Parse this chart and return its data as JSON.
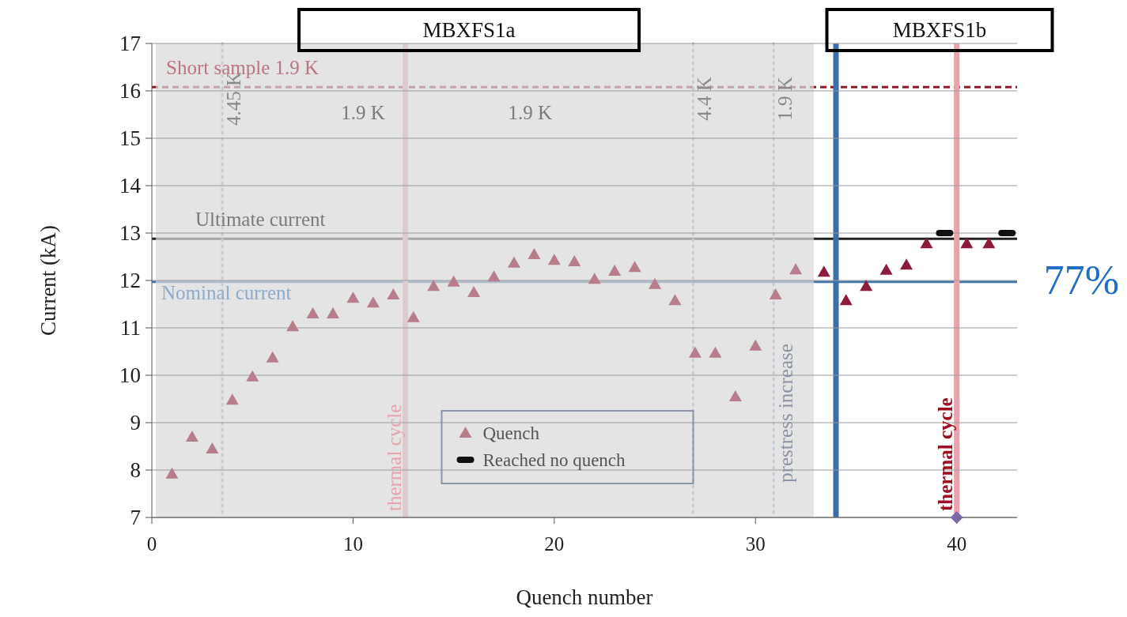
{
  "chart_data": {
    "type": "scatter",
    "xlabel": "Quench number",
    "ylabel": "Current (kA)",
    "xlim": [
      0,
      43
    ],
    "xticks": [
      0,
      10,
      20,
      30,
      40
    ],
    "ylim": [
      7,
      17
    ],
    "yticks": [
      7,
      8,
      9,
      10,
      11,
      12,
      13,
      14,
      15,
      16,
      17
    ],
    "grid": "y",
    "legend": "bottom",
    "series": [
      {
        "name": "Quench",
        "color": "#b77d8b",
        "marker": "triangle",
        "x": [
          1,
          2,
          3,
          4,
          5,
          6,
          7,
          8,
          9,
          10,
          11,
          12,
          13,
          14,
          15,
          16,
          17,
          18,
          19,
          20,
          21,
          22,
          23,
          24,
          25,
          26,
          27,
          28,
          29,
          30,
          31,
          32
        ],
        "values": [
          7.92,
          8.7,
          8.45,
          9.48,
          9.97,
          10.37,
          11.03,
          11.3,
          11.3,
          11.63,
          11.53,
          11.7,
          11.22,
          11.88,
          11.97,
          11.75,
          12.08,
          12.37,
          12.55,
          12.43,
          12.4,
          12.03,
          12.2,
          12.28,
          11.92,
          11.58,
          10.47,
          10.47,
          9.55,
          10.62,
          11.7,
          12.23
        ]
      },
      {
        "color": "#8b1c3c",
        "marker": "triangle",
        "x": [
          33.4,
          34.5,
          35.5,
          36.5,
          37.5,
          38.5,
          40.5,
          41.6
        ],
        "values": [
          12.18,
          11.58,
          11.88,
          12.22,
          12.33,
          12.78,
          12.78,
          12.78
        ]
      },
      {
        "name": "Reached no quench",
        "color": "#111111",
        "marker": "square",
        "x": [
          39.4,
          42.5
        ],
        "values": [
          13.0,
          13.0
        ]
      },
      {
        "color": "#7b68a6",
        "marker": "diamond",
        "x": [
          40
        ],
        "values": [
          7
        ]
      }
    ],
    "bands": [
      {
        "axis": "x",
        "from": 0.2,
        "to": 32.9,
        "color": "#d9d9d9"
      }
    ],
    "ref_lines": [
      {
        "axis": "y",
        "value": 16.08,
        "label": "Short sample 1.9 K",
        "color": "#8b1a2b",
        "line_style": "dashed"
      },
      {
        "axis": "y",
        "value": 12.88,
        "label": "Ultimate  current",
        "color": "#222222",
        "line_style": "solid"
      },
      {
        "axis": "y",
        "value": 11.97,
        "label": "Nominal  current",
        "color": "#3f75aa",
        "line_style": "solid"
      },
      {
        "axis": "x",
        "value": 3.5,
        "label": "4.45 K",
        "color": "#8fa8c4",
        "line_style": "dotted"
      },
      {
        "axis": "x",
        "value": 26.9,
        "label": "4.4 K",
        "color": "#8fa8c4",
        "line_style": "dotted"
      },
      {
        "axis": "x",
        "value": 30.9,
        "label": "1.9 K",
        "color": "#8fa8c4",
        "line_style": "dotted"
      },
      {
        "axis": "x",
        "value": 12.6,
        "label": "thermal cycle",
        "color": "#e8a4ac",
        "line_style": "solid"
      },
      {
        "axis": "x",
        "value": 40,
        "label": "thermal cycle",
        "color": "#e8a4ac",
        "line_style": "solid"
      },
      {
        "axis": "x",
        "value": 34,
        "color": "#3c6eab",
        "line_style": "solid"
      }
    ],
    "annotations": [
      "MBXFS1a",
      "MBXFS1b",
      "77%",
      "1.9 K",
      "1.9 K",
      "prestress increase"
    ]
  }
}
